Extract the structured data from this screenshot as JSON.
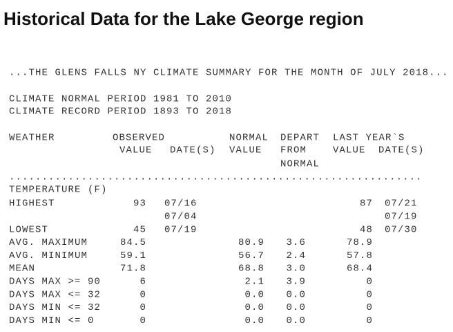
{
  "title": "Historical Data for the Lake George region",
  "summary_line": "...THE GLENS FALLS NY CLIMATE SUMMARY FOR THE MONTH OF JULY 2018...",
  "periods": [
    "CLIMATE NORMAL PERIOD 1981 TO 2010",
    "CLIMATE RECORD PERIOD 1893 TO 2018"
  ],
  "headers": [
    [
      "WEATHER",
      "OBSERVED",
      "NORMAL",
      "DEPART",
      "LAST YEAR`S"
    ],
    [
      "VALUE",
      "DATE(S)",
      "VALUE",
      "FROM",
      "VALUE",
      "DATE(S)"
    ],
    [
      "NORMAL"
    ]
  ],
  "separator": "...............................................................",
  "section": "TEMPERATURE (F)",
  "rows": [
    {
      "label": "HIGHEST",
      "observed": "93",
      "observed_dates": [
        "07/16",
        "07/04"
      ],
      "last_year": "87",
      "last_year_dates": [
        "07/21",
        "07/19"
      ]
    },
    {
      "label": "LOWEST",
      "observed": "45",
      "observed_dates": [
        "07/19"
      ],
      "last_year": "48",
      "last_year_dates": [
        "07/30"
      ]
    },
    {
      "label": "AVG. MAXIMUM",
      "observed": "84.5",
      "normal": "80.9",
      "depart": "3.6",
      "last_year": "78.9"
    },
    {
      "label": "AVG. MINIMUM",
      "observed": "59.1",
      "normal": "56.7",
      "depart": "2.4",
      "last_year": "57.8"
    },
    {
      "label": "MEAN",
      "observed": "71.8",
      "normal": "68.8",
      "depart": "3.0",
      "last_year": "68.4"
    },
    {
      "label": "DAYS MAX >= 90",
      "observed": "6",
      "normal": "2.1",
      "depart": "3.9",
      "last_year": "0"
    },
    {
      "label": "DAYS MAX <= 32",
      "observed": "0",
      "normal": "0.0",
      "depart": "0.0",
      "last_year": "0"
    },
    {
      "label": "DAYS MIN <= 32",
      "observed": "0",
      "normal": "0.0",
      "depart": "0.0",
      "last_year": "0"
    },
    {
      "label": "DAYS MIN <= 0",
      "observed": "0",
      "normal": "0.0",
      "depart": "0.0",
      "last_year": "0"
    }
  ]
}
